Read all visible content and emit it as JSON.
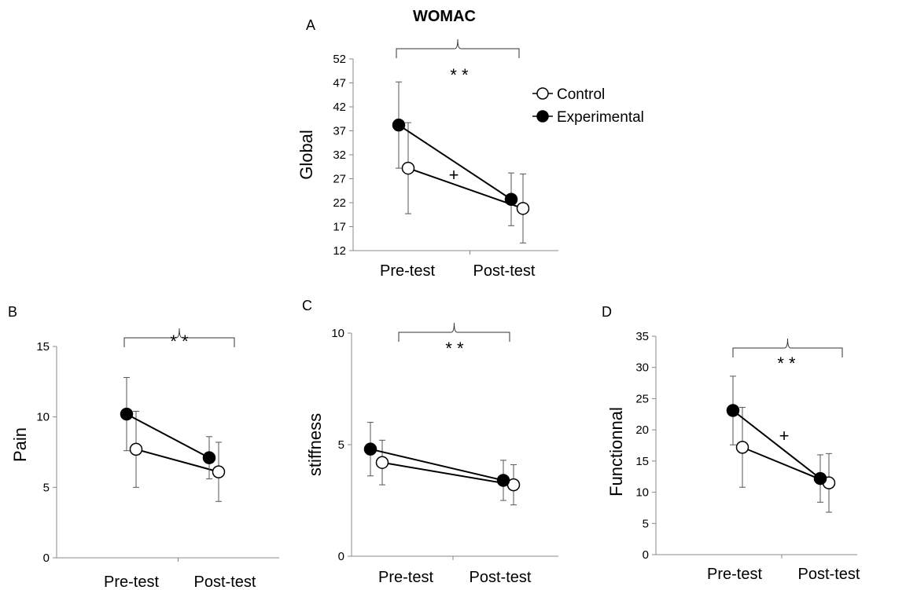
{
  "title": "WOMAC",
  "legend": [
    {
      "name": "Control",
      "marker": "open"
    },
    {
      "name": "Experimental",
      "marker": "filled"
    }
  ],
  "colors": {
    "line": "#000000",
    "error_bar": "#555555",
    "axis": "#888888"
  },
  "chart_data": [
    {
      "id": "A",
      "panel": "A",
      "type": "line",
      "ylabel": "Global",
      "categories": [
        "Pre-test",
        "Post-test"
      ],
      "ylim": [
        12,
        52
      ],
      "yticks": [
        12,
        17,
        22,
        27,
        32,
        37,
        42,
        47,
        52
      ],
      "series": [
        {
          "name": "Control",
          "values": [
            29.2,
            20.8
          ],
          "error": [
            9.5,
            7.2
          ]
        },
        {
          "name": "Experimental",
          "values": [
            38.2,
            22.7
          ],
          "error": [
            9.0,
            5.5
          ]
        }
      ],
      "significance": "* *",
      "interaction": "+"
    },
    {
      "id": "B",
      "panel": "B",
      "type": "line",
      "ylabel": "Pain",
      "categories": [
        "Pre-test",
        "Post-test"
      ],
      "ylim": [
        0,
        15
      ],
      "yticks": [
        0,
        5,
        10,
        15
      ],
      "series": [
        {
          "name": "Control",
          "values": [
            7.7,
            6.1
          ],
          "error": [
            2.7,
            2.1
          ]
        },
        {
          "name": "Experimental",
          "values": [
            10.2,
            7.1
          ],
          "error": [
            2.6,
            1.5
          ]
        }
      ],
      "significance": "* *"
    },
    {
      "id": "C",
      "panel": "C",
      "type": "line",
      "ylabel": "stiffness",
      "categories": [
        "Pre-test",
        "Post-test"
      ],
      "ylim": [
        0,
        10
      ],
      "yticks": [
        0,
        5,
        10
      ],
      "series": [
        {
          "name": "Control",
          "values": [
            4.2,
            3.2
          ],
          "error": [
            1.0,
            0.9
          ]
        },
        {
          "name": "Experimental",
          "values": [
            4.8,
            3.4
          ],
          "error": [
            1.2,
            0.9
          ]
        }
      ],
      "significance": "* *"
    },
    {
      "id": "D",
      "panel": "D",
      "type": "line",
      "ylabel": "Functionnal",
      "categories": [
        "Pre-test",
        "Post-test"
      ],
      "ylim": [
        0,
        35
      ],
      "yticks": [
        0,
        5,
        10,
        15,
        20,
        25,
        30,
        35
      ],
      "series": [
        {
          "name": "Control",
          "values": [
            17.2,
            11.5
          ],
          "error": [
            6.4,
            4.7
          ]
        },
        {
          "name": "Experimental",
          "values": [
            23.1,
            12.2
          ],
          "error": [
            5.5,
            3.8
          ]
        }
      ],
      "significance": "* *",
      "interaction": "+"
    }
  ]
}
